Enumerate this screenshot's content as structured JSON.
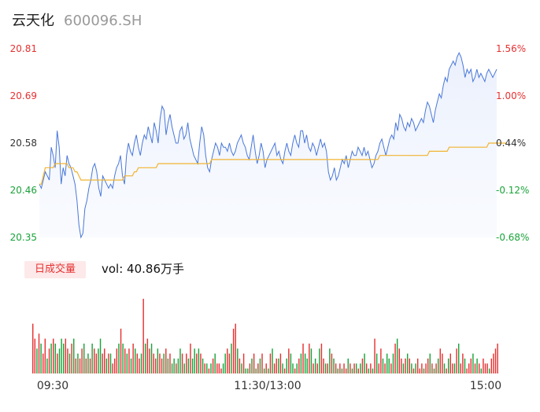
{
  "header": {
    "name": "云天化",
    "code": "600096.SH"
  },
  "volume_panel": {
    "tag": "日成交量",
    "text": "vol: 40.86万手"
  },
  "colors": {
    "up": "#e63131",
    "down": "#1aa33a",
    "price_line": "#4a78d8",
    "avg_line": "#f1b431",
    "axis_text": "#333333"
  },
  "chart_data": [
    {
      "type": "line",
      "ylim": [
        20.35,
        20.81
      ],
      "y_tick_labels": [
        "20.81",
        "20.69",
        "20.58",
        "20.46",
        "20.35"
      ],
      "right_tick_labels": [
        "1.56%",
        "1.00%",
        "0.44%",
        "-0.12%",
        "-0.68%"
      ],
      "series": [
        {
          "values": [
            20.48,
            20.47,
            20.49,
            20.51,
            20.5,
            20.49,
            20.57,
            20.55,
            20.52,
            20.61,
            20.57,
            20.48,
            20.52,
            20.5,
            20.55,
            20.53,
            20.52,
            20.5,
            20.48,
            20.44,
            20.38,
            20.35,
            20.36,
            20.42,
            20.44,
            20.47,
            20.49,
            20.52,
            20.53,
            20.51,
            20.47,
            20.45,
            20.5,
            20.49,
            20.48,
            20.47,
            20.48,
            20.47,
            20.5,
            20.52,
            20.53,
            20.55,
            20.5,
            20.48,
            20.55,
            20.58,
            20.56,
            20.55,
            20.58,
            20.6,
            20.57,
            20.55,
            20.58,
            20.6,
            20.59,
            20.62,
            20.6,
            20.58,
            20.63,
            20.61,
            20.58,
            20.64,
            20.67,
            20.66,
            20.6,
            20.63,
            20.65,
            20.62,
            20.6,
            20.58,
            20.58,
            20.61,
            20.62,
            20.59,
            20.6,
            20.63,
            20.59,
            20.57,
            20.55,
            20.54,
            20.53,
            20.58,
            20.62,
            20.6,
            20.55,
            20.52,
            20.51,
            20.54,
            20.56,
            20.58,
            20.57,
            20.55,
            20.58,
            20.57,
            20.57,
            20.56,
            20.58,
            20.56,
            20.55,
            20.56,
            20.58,
            20.59,
            20.6,
            20.58,
            20.57,
            20.55,
            20.54,
            20.57,
            20.6,
            20.56,
            20.53,
            20.55,
            20.58,
            20.56,
            20.52,
            20.54,
            20.55,
            20.56,
            20.57,
            20.58,
            20.55,
            20.56,
            20.54,
            20.53,
            20.56,
            20.58,
            20.56,
            20.55,
            20.58,
            20.6,
            20.58,
            20.57,
            20.61,
            20.61,
            20.58,
            20.6,
            20.57,
            20.56,
            20.58,
            20.57,
            20.55,
            20.57,
            20.59,
            20.57,
            20.58,
            20.56,
            20.51,
            20.49,
            20.5,
            20.52,
            20.49,
            20.5,
            20.52,
            20.54,
            20.53,
            20.55,
            20.52,
            20.54,
            20.56,
            20.55,
            20.55,
            20.57,
            20.56,
            20.55,
            20.57,
            20.55,
            20.56,
            20.54,
            20.52,
            20.53,
            20.55,
            20.56,
            20.58,
            20.59,
            20.57,
            20.55,
            20.57,
            20.59,
            20.6,
            20.59,
            20.63,
            20.61,
            20.65,
            20.64,
            20.62,
            20.61,
            20.63,
            20.62,
            20.64,
            20.63,
            20.61,
            20.62,
            20.63,
            20.64,
            20.63,
            20.66,
            20.68,
            20.67,
            20.65,
            20.63,
            20.66,
            20.68,
            20.7,
            20.69,
            20.72,
            20.74,
            20.73,
            20.76,
            20.77,
            20.78,
            20.77,
            20.79,
            20.8,
            20.79,
            20.77,
            20.74,
            20.76,
            20.75,
            20.76,
            20.73,
            20.74,
            20.76,
            20.74,
            20.75,
            20.74,
            20.73,
            20.75,
            20.76,
            20.75,
            20.74,
            20.75,
            20.76
          ]
        },
        {
          "values": [
            20.48,
            20.48,
            20.5,
            20.52,
            20.52,
            20.52,
            20.52,
            20.52,
            20.53,
            20.53,
            20.53,
            20.53,
            20.53,
            20.53,
            20.53,
            20.52,
            20.52,
            20.52,
            20.51,
            20.51,
            20.5,
            20.49,
            20.49,
            20.49,
            20.49,
            20.49,
            20.49,
            20.49,
            20.49,
            20.49,
            20.49,
            20.49,
            20.49,
            20.49,
            20.49,
            20.49,
            20.49,
            20.49,
            20.49,
            20.49,
            20.49,
            20.49,
            20.49,
            20.5,
            20.5,
            20.5,
            20.5,
            20.5,
            20.51,
            20.51,
            20.52,
            20.52,
            20.52,
            20.52,
            20.52,
            20.52,
            20.52,
            20.52,
            20.52,
            20.52,
            20.53,
            20.53,
            20.53,
            20.53,
            20.53,
            20.53,
            20.53,
            20.53,
            20.53,
            20.53,
            20.53,
            20.53,
            20.53,
            20.53,
            20.53,
            20.53,
            20.53,
            20.53,
            20.53,
            20.53,
            20.53,
            20.53,
            20.53,
            20.53,
            20.53,
            20.53,
            20.53,
            20.54,
            20.54,
            20.54,
            20.54,
            20.54,
            20.54,
            20.54,
            20.54,
            20.54,
            20.54,
            20.54,
            20.54,
            20.54,
            20.54,
            20.54,
            20.54,
            20.54,
            20.54,
            20.54,
            20.54,
            20.54,
            20.54,
            20.54,
            20.54,
            20.54,
            20.54,
            20.54,
            20.54,
            20.54,
            20.54,
            20.54,
            20.54,
            20.54,
            20.54,
            20.54,
            20.54,
            20.54,
            20.54,
            20.54,
            20.54,
            20.54,
            20.54,
            20.54,
            20.54,
            20.54,
            20.54,
            20.54,
            20.54,
            20.54,
            20.54,
            20.54,
            20.54,
            20.54,
            20.54,
            20.54,
            20.54,
            20.54,
            20.54,
            20.54,
            20.54,
            20.54,
            20.54,
            20.54,
            20.54,
            20.54,
            20.54,
            20.54,
            20.54,
            20.54,
            20.54,
            20.54,
            20.54,
            20.54,
            20.54,
            20.54,
            20.54,
            20.54,
            20.54,
            20.54,
            20.54,
            20.54,
            20.54,
            20.54,
            20.54,
            20.54,
            20.55,
            20.55,
            20.55,
            20.55,
            20.55,
            20.55,
            20.55,
            20.55,
            20.55,
            20.55,
            20.55,
            20.55,
            20.55,
            20.55,
            20.55,
            20.55,
            20.55,
            20.55,
            20.55,
            20.55,
            20.55,
            20.55,
            20.55,
            20.55,
            20.55,
            20.56,
            20.56,
            20.56,
            20.56,
            20.56,
            20.56,
            20.56,
            20.56,
            20.56,
            20.56,
            20.57,
            20.57,
            20.57,
            20.57,
            20.57,
            20.57,
            20.57,
            20.57,
            20.57,
            20.57,
            20.57,
            20.57,
            20.57,
            20.57,
            20.57,
            20.57,
            20.57,
            20.57,
            20.57,
            20.57,
            20.58,
            20.58,
            20.58,
            20.58,
            20.58,
            20.58,
            20.58,
            20.58,
            20.58,
            20.58
          ]
        }
      ]
    },
    {
      "type": "bar",
      "x_tick_labels": [
        "09:30",
        "11:30/13:00",
        "15:00"
      ],
      "values": [
        10,
        7,
        5,
        8,
        6,
        4,
        7,
        3,
        5,
        6,
        7,
        6,
        4,
        5,
        7,
        6,
        7,
        5,
        4,
        6,
        7,
        3,
        4,
        3,
        5,
        6,
        3,
        4,
        3,
        6,
        5,
        4,
        5,
        7,
        4,
        5,
        3,
        4,
        4,
        2,
        3,
        5,
        6,
        9,
        6,
        5,
        4,
        5,
        3,
        6,
        5,
        4,
        3,
        4,
        15,
        6,
        7,
        5,
        6,
        4,
        3,
        5,
        4,
        3,
        4,
        5,
        3,
        4,
        2,
        3,
        2,
        3,
        5,
        4,
        2,
        4,
        3,
        6,
        3,
        5,
        4,
        5,
        4,
        3,
        2,
        2,
        1,
        2,
        3,
        4,
        2,
        2,
        1,
        2,
        4,
        5,
        4,
        6,
        9,
        10,
        5,
        3,
        2,
        4,
        1,
        1,
        2,
        3,
        4,
        1,
        2,
        3,
        4,
        1,
        2,
        1,
        4,
        5,
        2,
        3,
        3,
        4,
        2,
        1,
        3,
        5,
        4,
        2,
        1,
        2,
        3,
        4,
        6,
        4,
        3,
        6,
        5,
        2,
        3,
        2,
        5,
        6,
        3,
        2,
        2,
        5,
        4,
        3,
        2,
        1,
        2,
        1,
        2,
        1,
        3,
        2,
        1,
        2,
        2,
        1,
        2,
        3,
        4,
        2,
        1,
        2,
        1,
        7,
        4,
        2,
        5,
        3,
        2,
        4,
        3,
        2,
        4,
        6,
        7,
        5,
        3,
        2,
        3,
        4,
        3,
        2,
        1,
        2,
        3,
        1,
        2,
        1,
        2,
        3,
        4,
        2,
        1,
        2,
        3,
        5,
        4,
        2,
        1,
        3,
        4,
        2,
        2,
        5,
        6,
        2,
        4,
        3,
        1,
        2,
        3,
        4,
        2,
        3,
        2,
        1,
        3,
        2,
        2,
        1,
        3,
        4,
        5,
        6
      ],
      "up": [
        true,
        true,
        false,
        true,
        false,
        true,
        true,
        false,
        true,
        false,
        true,
        false,
        true,
        false,
        false,
        false,
        true,
        true,
        false,
        true,
        false,
        true,
        false,
        true,
        true,
        false,
        true,
        false,
        true,
        false,
        true,
        true,
        false,
        false,
        true,
        true,
        false,
        true,
        false,
        true,
        true,
        true,
        false,
        true,
        false,
        true,
        false,
        true,
        false,
        true,
        false,
        true,
        true,
        false,
        true,
        false,
        true,
        true,
        false,
        true,
        true,
        false,
        true,
        true,
        false,
        true,
        false,
        true,
        false,
        false,
        true,
        false,
        false,
        true,
        false,
        true,
        false,
        true,
        false,
        false,
        true,
        false,
        true,
        false,
        true,
        false,
        true,
        false,
        true,
        false,
        true,
        true,
        true,
        false,
        false,
        true,
        true,
        false,
        true,
        true,
        false,
        true,
        false,
        true,
        false,
        false,
        true,
        false,
        true,
        false,
        true,
        false,
        true,
        false,
        true,
        false,
        true,
        false,
        true,
        true,
        false,
        true,
        false,
        true,
        false,
        true,
        false,
        false,
        true,
        false,
        true,
        false,
        true,
        false,
        false,
        true,
        false,
        true,
        false,
        true,
        false,
        true,
        true,
        false,
        true,
        false,
        true,
        false,
        true,
        false,
        true,
        false,
        true,
        true,
        false,
        true,
        false,
        true,
        false,
        true,
        false,
        true,
        false,
        true,
        false,
        true,
        false,
        true,
        false,
        true,
        true,
        false,
        true,
        false,
        false,
        true,
        false,
        true,
        false,
        true,
        true,
        false,
        true,
        false,
        true,
        false,
        true,
        false,
        true,
        true,
        true,
        false,
        true,
        true,
        false,
        true,
        false,
        true,
        false,
        true,
        true,
        false,
        true,
        false,
        true,
        true,
        false,
        true,
        false,
        true,
        true,
        false,
        true,
        true,
        true,
        false,
        true,
        false,
        true,
        false,
        true,
        true,
        true,
        false,
        true,
        true,
        true,
        true,
        true,
        false
      ]
    }
  ]
}
